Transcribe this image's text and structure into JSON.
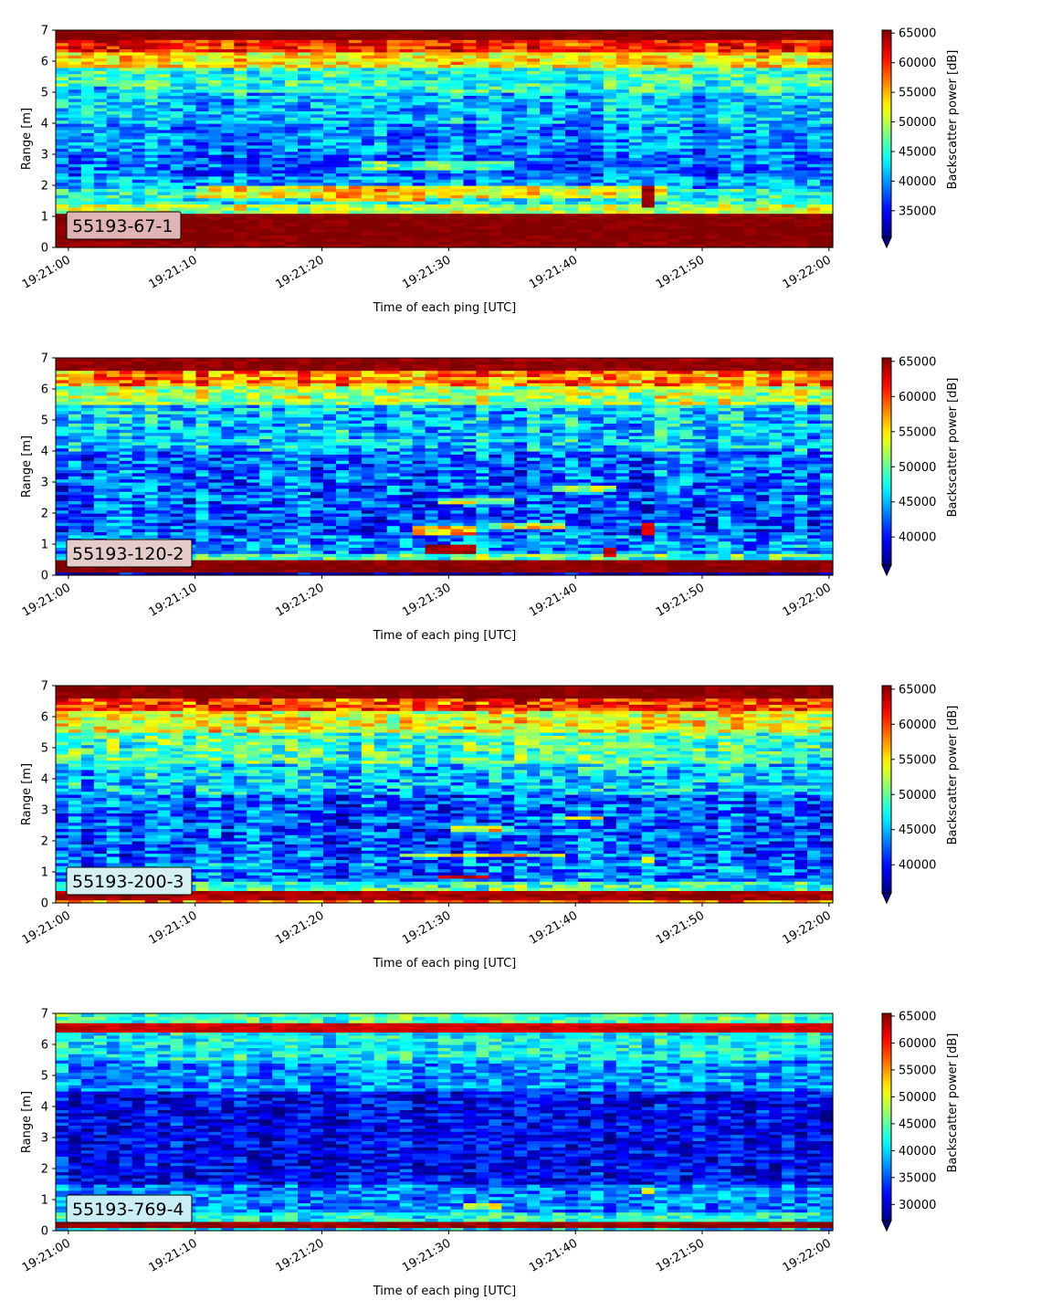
{
  "chart_data": [
    {
      "type": "heatmap",
      "label": "55193-67-1",
      "label_bg": "#e0b4b4",
      "xlabel": "Time of each ping [UTC]",
      "ylabel": "Range [m]",
      "x_ticks": [
        "19:21:00",
        "19:21:10",
        "19:21:20",
        "19:21:30",
        "19:21:40",
        "19:21:50",
        "19:22:00"
      ],
      "y_ticks": [
        "0",
        "1",
        "2",
        "3",
        "4",
        "5",
        "6",
        "7"
      ],
      "xlim": [
        "19:20:59",
        "19:22:00.3"
      ],
      "ylim": [
        0,
        7
      ],
      "colorbar": {
        "label": "Backscatter power [dB]",
        "min": 30500,
        "max": 65500,
        "ticks": [
          "35000",
          "40000",
          "45000",
          "50000",
          "55000",
          "60000",
          "65000"
        ],
        "extend": "min"
      },
      "bands": [
        {
          "from": 0.0,
          "to": 0.25,
          "value": 64500
        },
        {
          "from": 0.25,
          "to": 1.15,
          "value": 65000
        },
        {
          "from": 1.15,
          "to": 1.45,
          "value": 50000
        },
        {
          "from": 1.45,
          "to": 1.95,
          "value": 44000
        },
        {
          "from": 1.95,
          "to": 2.3,
          "value": 40000
        },
        {
          "from": 2.3,
          "to": 3.0,
          "value": 38000
        },
        {
          "from": 3.0,
          "to": 4.0,
          "value": 39500
        },
        {
          "from": 4.0,
          "to": 5.0,
          "value": 41500
        },
        {
          "from": 5.0,
          "to": 5.8,
          "value": 45000
        },
        {
          "from": 5.8,
          "to": 6.3,
          "value": 53000
        },
        {
          "from": 6.3,
          "to": 6.7,
          "value": 60000
        },
        {
          "from": 6.7,
          "to": 7.0,
          "value": 65000
        }
      ],
      "features": [
        {
          "t0": 10,
          "t1": 47,
          "r0": 1.6,
          "r1": 2.0,
          "value": 52000
        },
        {
          "t0": 20,
          "t1": 28,
          "r0": 1.5,
          "r1": 2.0,
          "value": 55000
        },
        {
          "t0": 23,
          "t1": 35,
          "r0": 2.5,
          "r1": 2.8,
          "value": 46000
        },
        {
          "t0": 45.5,
          "t1": 46.5,
          "r0": 1.35,
          "r1": 2.05,
          "value": 64000
        },
        {
          "t0": 0,
          "t1": 3,
          "r0": 4.9,
          "r1": 5.2,
          "value": 40000
        }
      ]
    },
    {
      "type": "heatmap",
      "label": "55193-120-2",
      "label_bg": "#e6cbcb",
      "xlabel": "Time of each ping [UTC]",
      "ylabel": "Range [m]",
      "x_ticks": [
        "19:21:00",
        "19:21:10",
        "19:21:20",
        "19:21:30",
        "19:21:40",
        "19:21:50",
        "19:22:00"
      ],
      "y_ticks": [
        "0",
        "1",
        "2",
        "3",
        "4",
        "5",
        "6",
        "7"
      ],
      "xlim": [
        "19:20:59",
        "19:22:00.3"
      ],
      "ylim": [
        0,
        7
      ],
      "colorbar": {
        "label": "Backscatter power [dB]",
        "min": 36000,
        "max": 65500,
        "ticks": [
          "40000",
          "45000",
          "50000",
          "55000",
          "60000",
          "65000"
        ],
        "extend": "min"
      },
      "bands": [
        {
          "from": 0.0,
          "to": 0.1,
          "value": 37000
        },
        {
          "from": 0.1,
          "to": 0.5,
          "value": 65000
        },
        {
          "from": 0.5,
          "to": 0.75,
          "value": 49000
        },
        {
          "from": 0.75,
          "to": 1.3,
          "value": 44000
        },
        {
          "from": 1.3,
          "to": 2.3,
          "value": 42000
        },
        {
          "from": 2.3,
          "to": 4.0,
          "value": 42500
        },
        {
          "from": 4.0,
          "to": 5.5,
          "value": 45500
        },
        {
          "from": 5.5,
          "to": 6.1,
          "value": 52000
        },
        {
          "from": 6.1,
          "to": 6.6,
          "value": 58000
        },
        {
          "from": 6.6,
          "to": 7.0,
          "value": 64500
        }
      ],
      "features": [
        {
          "t0": 28,
          "t1": 32,
          "r0": 0.75,
          "r1": 1.0,
          "value": 64000
        },
        {
          "t0": 27,
          "t1": 32,
          "r0": 1.3,
          "r1": 1.6,
          "value": 57000
        },
        {
          "t0": 33,
          "t1": 39,
          "r0": 1.5,
          "r1": 1.7,
          "value": 54000
        },
        {
          "t0": 29,
          "t1": 35,
          "r0": 2.35,
          "r1": 2.5,
          "value": 52000
        },
        {
          "t0": 38,
          "t1": 43,
          "r0": 2.7,
          "r1": 2.85,
          "value": 52000
        },
        {
          "t0": 45.5,
          "t1": 46.5,
          "r0": 1.35,
          "r1": 1.7,
          "value": 62000
        },
        {
          "t0": 42,
          "t1": 43,
          "r0": 0.65,
          "r1": 0.9,
          "value": 63000
        }
      ]
    },
    {
      "type": "heatmap",
      "label": "55193-200-3",
      "label_bg": "#d4f0f2",
      "xlabel": "Time of each ping [UTC]",
      "ylabel": "Range [m]",
      "x_ticks": [
        "19:21:00",
        "19:21:10",
        "19:21:20",
        "19:21:30",
        "19:21:40",
        "19:21:50",
        "19:22:00"
      ],
      "y_ticks": [
        "0",
        "1",
        "2",
        "3",
        "4",
        "5",
        "6",
        "7"
      ],
      "xlim": [
        "19:20:59",
        "19:22:00.3"
      ],
      "ylim": [
        0,
        7
      ],
      "colorbar": {
        "label": "Backscatter power [dB]",
        "min": 36000,
        "max": 65500,
        "ticks": [
          "40000",
          "45000",
          "50000",
          "55000",
          "60000",
          "65000"
        ],
        "extend": "min"
      },
      "bands": [
        {
          "from": 0.0,
          "to": 0.15,
          "value": 58000
        },
        {
          "from": 0.15,
          "to": 0.45,
          "value": 64000
        },
        {
          "from": 0.45,
          "to": 0.7,
          "value": 49000
        },
        {
          "from": 0.7,
          "to": 1.5,
          "value": 43000
        },
        {
          "from": 1.5,
          "to": 3.5,
          "value": 42000
        },
        {
          "from": 3.5,
          "to": 4.5,
          "value": 45500
        },
        {
          "from": 4.5,
          "to": 5.5,
          "value": 49000
        },
        {
          "from": 5.5,
          "to": 6.2,
          "value": 54000
        },
        {
          "from": 6.2,
          "to": 6.6,
          "value": 60000
        },
        {
          "from": 6.6,
          "to": 7.0,
          "value": 65000
        }
      ],
      "features": [
        {
          "t0": 29,
          "t1": 33,
          "r0": 0.8,
          "r1": 0.95,
          "value": 63000
        },
        {
          "t0": 26,
          "t1": 39,
          "r0": 1.5,
          "r1": 1.65,
          "value": 55000
        },
        {
          "t0": 30,
          "t1": 35,
          "r0": 2.3,
          "r1": 2.45,
          "value": 53000
        },
        {
          "t0": 38,
          "t1": 42,
          "r0": 2.7,
          "r1": 2.8,
          "value": 52000
        },
        {
          "t0": 45.5,
          "t1": 46.5,
          "r0": 1.35,
          "r1": 1.5,
          "value": 56000
        }
      ]
    },
    {
      "type": "heatmap",
      "label": "55193-769-4",
      "label_bg": "#c9eef3",
      "xlabel": "Time of each ping [UTC]",
      "ylabel": "Range [m]",
      "x_ticks": [
        "19:21:00",
        "19:21:10",
        "19:21:20",
        "19:21:30",
        "19:21:40",
        "19:21:50",
        "19:22:00"
      ],
      "y_ticks": [
        "0",
        "1",
        "2",
        "3",
        "4",
        "5",
        "6",
        "7"
      ],
      "xlim": [
        "19:20:59",
        "19:22:00.3"
      ],
      "ylim": [
        0,
        7
      ],
      "colorbar": {
        "label": "Backscatter power [dB]",
        "min": 27000,
        "max": 65500,
        "ticks": [
          "30000",
          "35000",
          "40000",
          "45000",
          "50000",
          "55000",
          "60000",
          "65000"
        ],
        "extend": "min"
      },
      "bands": [
        {
          "from": 0.0,
          "to": 0.15,
          "value": 40000
        },
        {
          "from": 0.15,
          "to": 0.35,
          "value": 64000
        },
        {
          "from": 0.35,
          "to": 0.6,
          "value": 42000
        },
        {
          "from": 0.6,
          "to": 1.5,
          "value": 36500
        },
        {
          "from": 1.5,
          "to": 4.5,
          "value": 31500
        },
        {
          "from": 4.5,
          "to": 5.5,
          "value": 37500
        },
        {
          "from": 5.5,
          "to": 6.4,
          "value": 41500
        },
        {
          "from": 6.4,
          "to": 6.75,
          "value": 62000
        },
        {
          "from": 6.75,
          "to": 7.0,
          "value": 44000
        }
      ],
      "features": [
        {
          "t0": 45.5,
          "t1": 46.5,
          "r0": 1.25,
          "r1": 1.45,
          "value": 54000
        },
        {
          "t0": 31,
          "t1": 34,
          "r0": 0.75,
          "r1": 0.9,
          "value": 48000
        }
      ]
    }
  ]
}
